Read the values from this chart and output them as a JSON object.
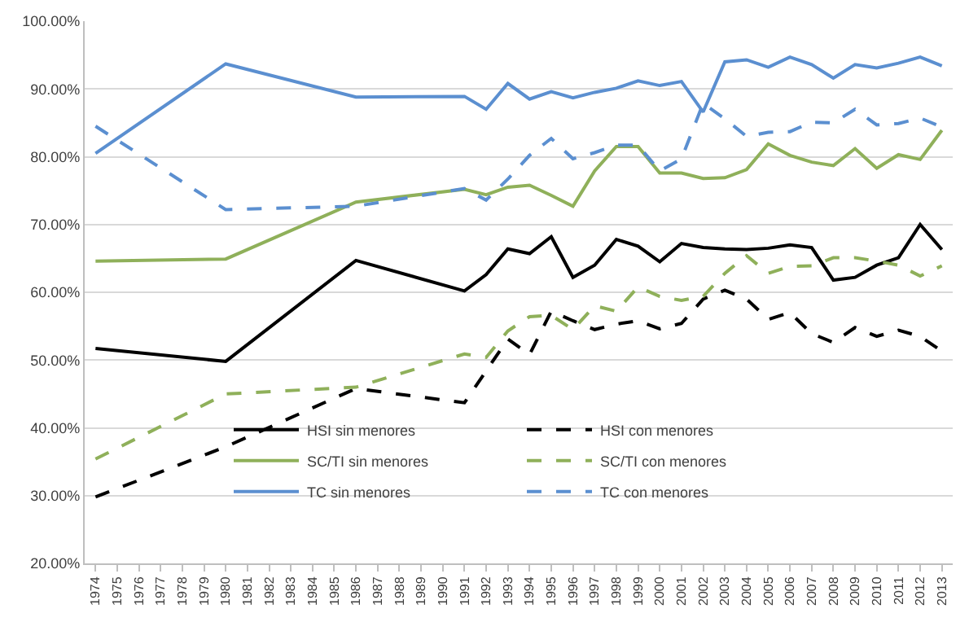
{
  "chart_data": {
    "type": "line",
    "x": [
      1974,
      1980,
      1986,
      1991,
      1992,
      1993,
      1994,
      1995,
      1996,
      1997,
      1998,
      1999,
      2000,
      2001,
      2002,
      2003,
      2004,
      2005,
      2006,
      2007,
      2008,
      2009,
      2010,
      2011,
      2012,
      2013
    ],
    "series": [
      {
        "name": "HSI sin menores",
        "color": "#000000",
        "line_style": "solid",
        "values": [
          51.7,
          49.8,
          64.7,
          60.2,
          62.6,
          66.4,
          65.7,
          68.2,
          62.2,
          64.0,
          67.8,
          66.8,
          64.5,
          67.2,
          66.6,
          66.4,
          66.3,
          66.5,
          67.0,
          66.6,
          61.8,
          62.2,
          64.0,
          65.1,
          70.0,
          66.3
        ]
      },
      {
        "name": "HSI con menores",
        "color": "#000000",
        "line_style": "dashed",
        "values": [
          29.8,
          37.2,
          45.8,
          43.7,
          48.4,
          53.1,
          50.8,
          57.2,
          55.8,
          54.5,
          55.3,
          55.8,
          54.6,
          55.4,
          59.0,
          60.3,
          59.0,
          56.0,
          57.0,
          53.9,
          52.6,
          54.8,
          53.5,
          54.4,
          53.5,
          51.3
        ]
      },
      {
        "name": "SC/TI sin menores",
        "color": "#8fb05a",
        "line_style": "solid",
        "values": [
          64.6,
          64.9,
          73.3,
          75.2,
          74.4,
          75.5,
          75.8,
          74.3,
          72.7,
          77.9,
          81.5,
          81.5,
          77.6,
          77.6,
          76.8,
          76.9,
          78.1,
          81.9,
          80.2,
          79.2,
          78.7,
          81.2,
          78.3,
          80.3,
          79.6,
          83.9
        ]
      },
      {
        "name": "SC/TI con menores",
        "color": "#8fb05a",
        "line_style": "dashed",
        "values": [
          35.4,
          45.0,
          46.0,
          50.9,
          50.4,
          54.3,
          56.4,
          56.6,
          54.5,
          58.0,
          57.2,
          60.8,
          59.4,
          58.8,
          59.4,
          62.8,
          65.4,
          62.8,
          63.8,
          63.9,
          65.1,
          65.1,
          64.6,
          64.0,
          62.4,
          63.9
        ]
      },
      {
        "name": "TC sin menores",
        "color": "#5b8fd0",
        "line_style": "solid",
        "values": [
          80.5,
          93.7,
          88.8,
          88.9,
          87.0,
          90.8,
          88.5,
          89.6,
          88.7,
          89.5,
          90.1,
          91.2,
          90.5,
          91.1,
          86.6,
          94.0,
          94.3,
          93.2,
          94.7,
          93.6,
          91.6,
          93.6,
          93.1,
          93.8,
          94.7,
          93.4
        ]
      },
      {
        "name": "TC con menores",
        "color": "#5b8fd0",
        "line_style": "dashed",
        "values": [
          84.5,
          72.2,
          72.7,
          75.3,
          73.6,
          76.7,
          80.2,
          82.7,
          79.7,
          80.6,
          81.7,
          81.7,
          77.9,
          79.7,
          87.9,
          85.6,
          83.0,
          83.6,
          83.7,
          85.1,
          85.0,
          87.0,
          84.7,
          84.9,
          85.7,
          84.4
        ]
      }
    ],
    "xlim": [
      1973.5,
      2013.5
    ],
    "xticks": [
      1974,
      1975,
      1976,
      1977,
      1978,
      1979,
      1980,
      1981,
      1982,
      1983,
      1984,
      1985,
      1986,
      1987,
      1988,
      1989,
      1990,
      1991,
      1992,
      1993,
      1994,
      1995,
      1996,
      1997,
      1998,
      1999,
      2000,
      2001,
      2002,
      2003,
      2004,
      2005,
      2006,
      2007,
      2008,
      2009,
      2010,
      2011,
      2012,
      2013
    ],
    "ylim": [
      20,
      100
    ],
    "yticks": [
      {
        "value": 20,
        "label": "20.00%"
      },
      {
        "value": 30,
        "label": "30.00%"
      },
      {
        "value": 40,
        "label": "40.00%"
      },
      {
        "value": 50,
        "label": "50.00%"
      },
      {
        "value": 60,
        "label": "60.00%"
      },
      {
        "value": 70,
        "label": "70.00%"
      },
      {
        "value": 80,
        "label": "80.00%"
      },
      {
        "value": 90,
        "label": "90.00%"
      },
      {
        "value": 100,
        "label": "100.00%"
      }
    ],
    "grid": "y",
    "legend": "bottom",
    "marker": "none"
  }
}
